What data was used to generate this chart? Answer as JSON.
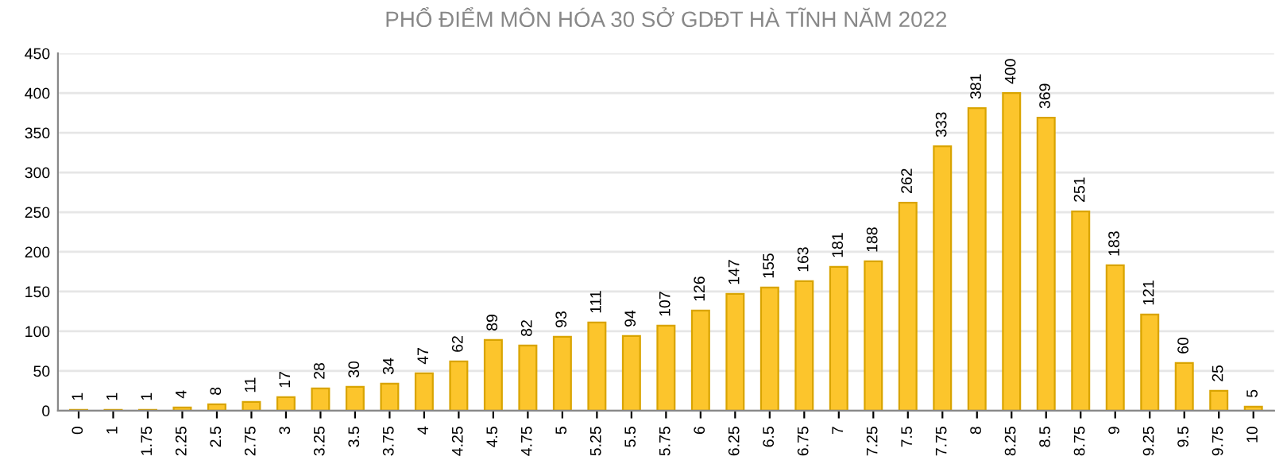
{
  "chart_data": {
    "type": "bar",
    "title": "PHỔ ĐIỂM MÔN HÓA 30 SỞ GDĐT HÀ TĨNH NĂM 2022",
    "categories": [
      "0",
      "1",
      "1.75",
      "2.25",
      "2.5",
      "2.75",
      "3",
      "3.25",
      "3.5",
      "3.75",
      "4",
      "4.25",
      "4.5",
      "4.75",
      "5",
      "5.25",
      "5.5",
      "5.75",
      "6",
      "6.25",
      "6.5",
      "6.75",
      "7",
      "7.25",
      "7.5",
      "7.75",
      "8",
      "8.25",
      "8.5",
      "8.75",
      "9",
      "9.25",
      "9.5",
      "9.75",
      "10"
    ],
    "values": [
      1,
      1,
      1,
      4,
      8,
      11,
      17,
      28,
      30,
      34,
      47,
      62,
      89,
      82,
      93,
      111,
      94,
      107,
      126,
      147,
      155,
      163,
      181,
      188,
      262,
      333,
      381,
      400,
      369,
      251,
      183,
      121,
      60,
      25,
      5
    ],
    "color": "#fcc52c",
    "ylim": [
      0,
      450
    ],
    "yticks": [
      0,
      50,
      100,
      150,
      200,
      250,
      300,
      350,
      400,
      450
    ],
    "grid": "y",
    "data_labels": true
  }
}
